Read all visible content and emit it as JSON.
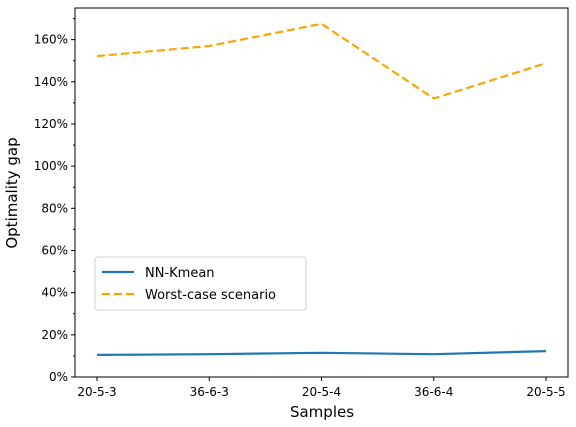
{
  "chart_data": {
    "type": "line",
    "categories": [
      "20-5-3",
      "36-6-3",
      "20-5-4",
      "36-6-4",
      "20-5-5"
    ],
    "series": [
      {
        "name": "NN-Kmean",
        "values": [
          10.5,
          10.8,
          11.5,
          10.8,
          12.3
        ],
        "color": "#1f77b4",
        "style": "solid"
      },
      {
        "name": "Worst-case scenario",
        "values": [
          152.2,
          157.0,
          167.5,
          132.1,
          148.8
        ],
        "color": "#ffa500",
        "style": "dashed"
      }
    ],
    "title": "",
    "xlabel": "Samples",
    "ylabel": "Optimality gap",
    "ylim": [
      0,
      175
    ],
    "yticks": [
      0,
      20,
      40,
      60,
      80,
      100,
      120,
      140,
      160
    ],
    "ytick_suffix": "%",
    "grid": false,
    "legend": "center-left"
  }
}
